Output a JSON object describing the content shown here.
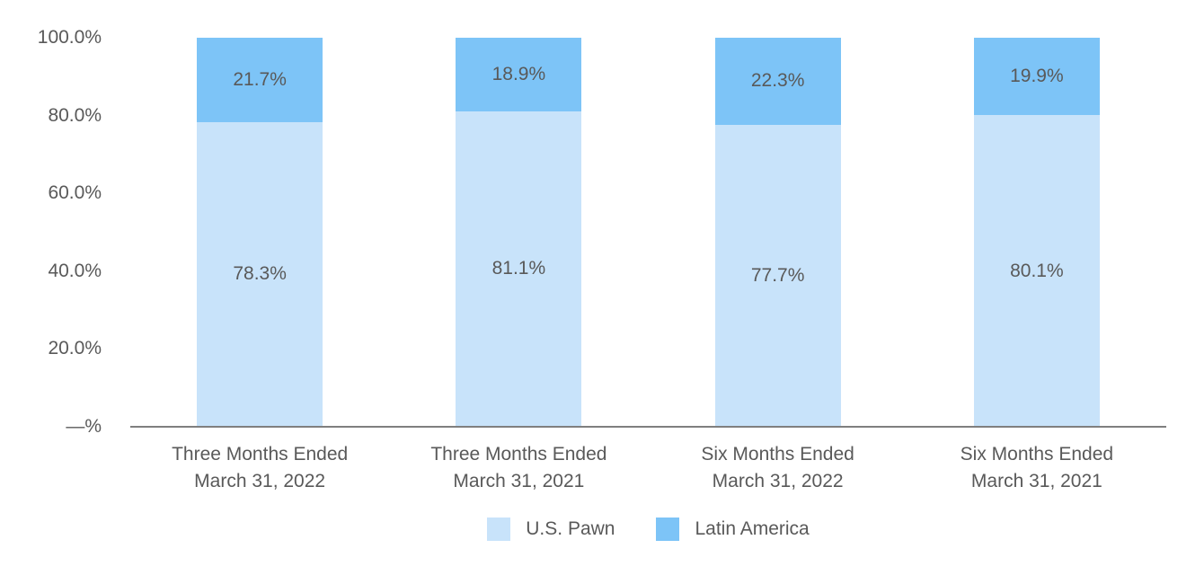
{
  "chart_data": {
    "type": "bar",
    "stacked": true,
    "orientation": "vertical",
    "title": "",
    "xlabel": "",
    "ylabel": "",
    "ylim": [
      0,
      100
    ],
    "grid": false,
    "legend_position": "bottom",
    "categories": [
      {
        "line1": "Three Months Ended",
        "line2": "March 31, 2022"
      },
      {
        "line1": "Three Months Ended",
        "line2": "March 31, 2021"
      },
      {
        "line1": "Six Months Ended",
        "line2": "March 31, 2022"
      },
      {
        "line1": "Six Months Ended",
        "line2": "March 31, 2021"
      }
    ],
    "series": [
      {
        "name": "U.S. Pawn",
        "color": "#C8E3FA",
        "values": [
          78.3,
          81.1,
          77.7,
          80.1
        ],
        "labels": [
          "78.3%",
          "81.1%",
          "77.7%",
          "80.1%"
        ]
      },
      {
        "name": "Latin America",
        "color": "#7DC4F7",
        "values": [
          21.7,
          18.9,
          22.3,
          19.9
        ],
        "labels": [
          "21.7%",
          "18.9%",
          "22.3%",
          "19.9%"
        ]
      }
    ],
    "yticks": [
      {
        "label": "100.0%",
        "value": 100
      },
      {
        "label": "80.0%",
        "value": 80
      },
      {
        "label": "60.0%",
        "value": 60
      },
      {
        "label": "40.0%",
        "value": 40
      },
      {
        "label": "20.0%",
        "value": 20
      },
      {
        "label": "—%",
        "value": 0
      }
    ],
    "legend": [
      {
        "label": "U.S. Pawn",
        "color": "#C8E3FA"
      },
      {
        "label": "Latin America",
        "color": "#7DC4F7"
      }
    ],
    "colors": {
      "axis_line": "#7f7f7f",
      "text": "#595959",
      "background": "#ffffff"
    }
  }
}
